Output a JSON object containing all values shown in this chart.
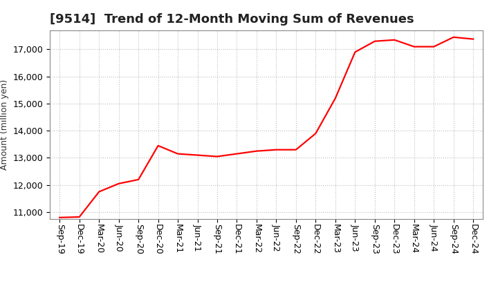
{
  "title": "[9514]  Trend of 12-Month Moving Sum of Revenues",
  "ylabel": "Amount (million yen)",
  "line_color": "#FF0000",
  "background_color": "#FFFFFF",
  "plot_bg_color": "#FFFFFF",
  "grid_color": "#BBBBBB",
  "x_labels": [
    "Sep-19",
    "Dec-19",
    "Mar-20",
    "Jun-20",
    "Sep-20",
    "Dec-20",
    "Mar-21",
    "Jun-21",
    "Sep-21",
    "Dec-21",
    "Mar-22",
    "Jun-22",
    "Sep-22",
    "Dec-22",
    "Mar-23",
    "Jun-23",
    "Sep-23",
    "Dec-23",
    "Mar-24",
    "Jun-24",
    "Sep-24",
    "Dec-24"
  ],
  "values": [
    10800,
    10820,
    11750,
    12050,
    12200,
    13450,
    13150,
    13100,
    13050,
    13150,
    13250,
    13300,
    13300,
    13900,
    15200,
    16900,
    17300,
    17350,
    17100,
    17100,
    17450,
    17380
  ],
  "ylim": [
    10750,
    17700
  ],
  "yticks": [
    11000,
    12000,
    13000,
    14000,
    15000,
    16000,
    17000
  ],
  "line_width": 1.6,
  "title_fontsize": 13,
  "title_color": "#222222",
  "ylabel_fontsize": 9,
  "tick_fontsize": 9
}
